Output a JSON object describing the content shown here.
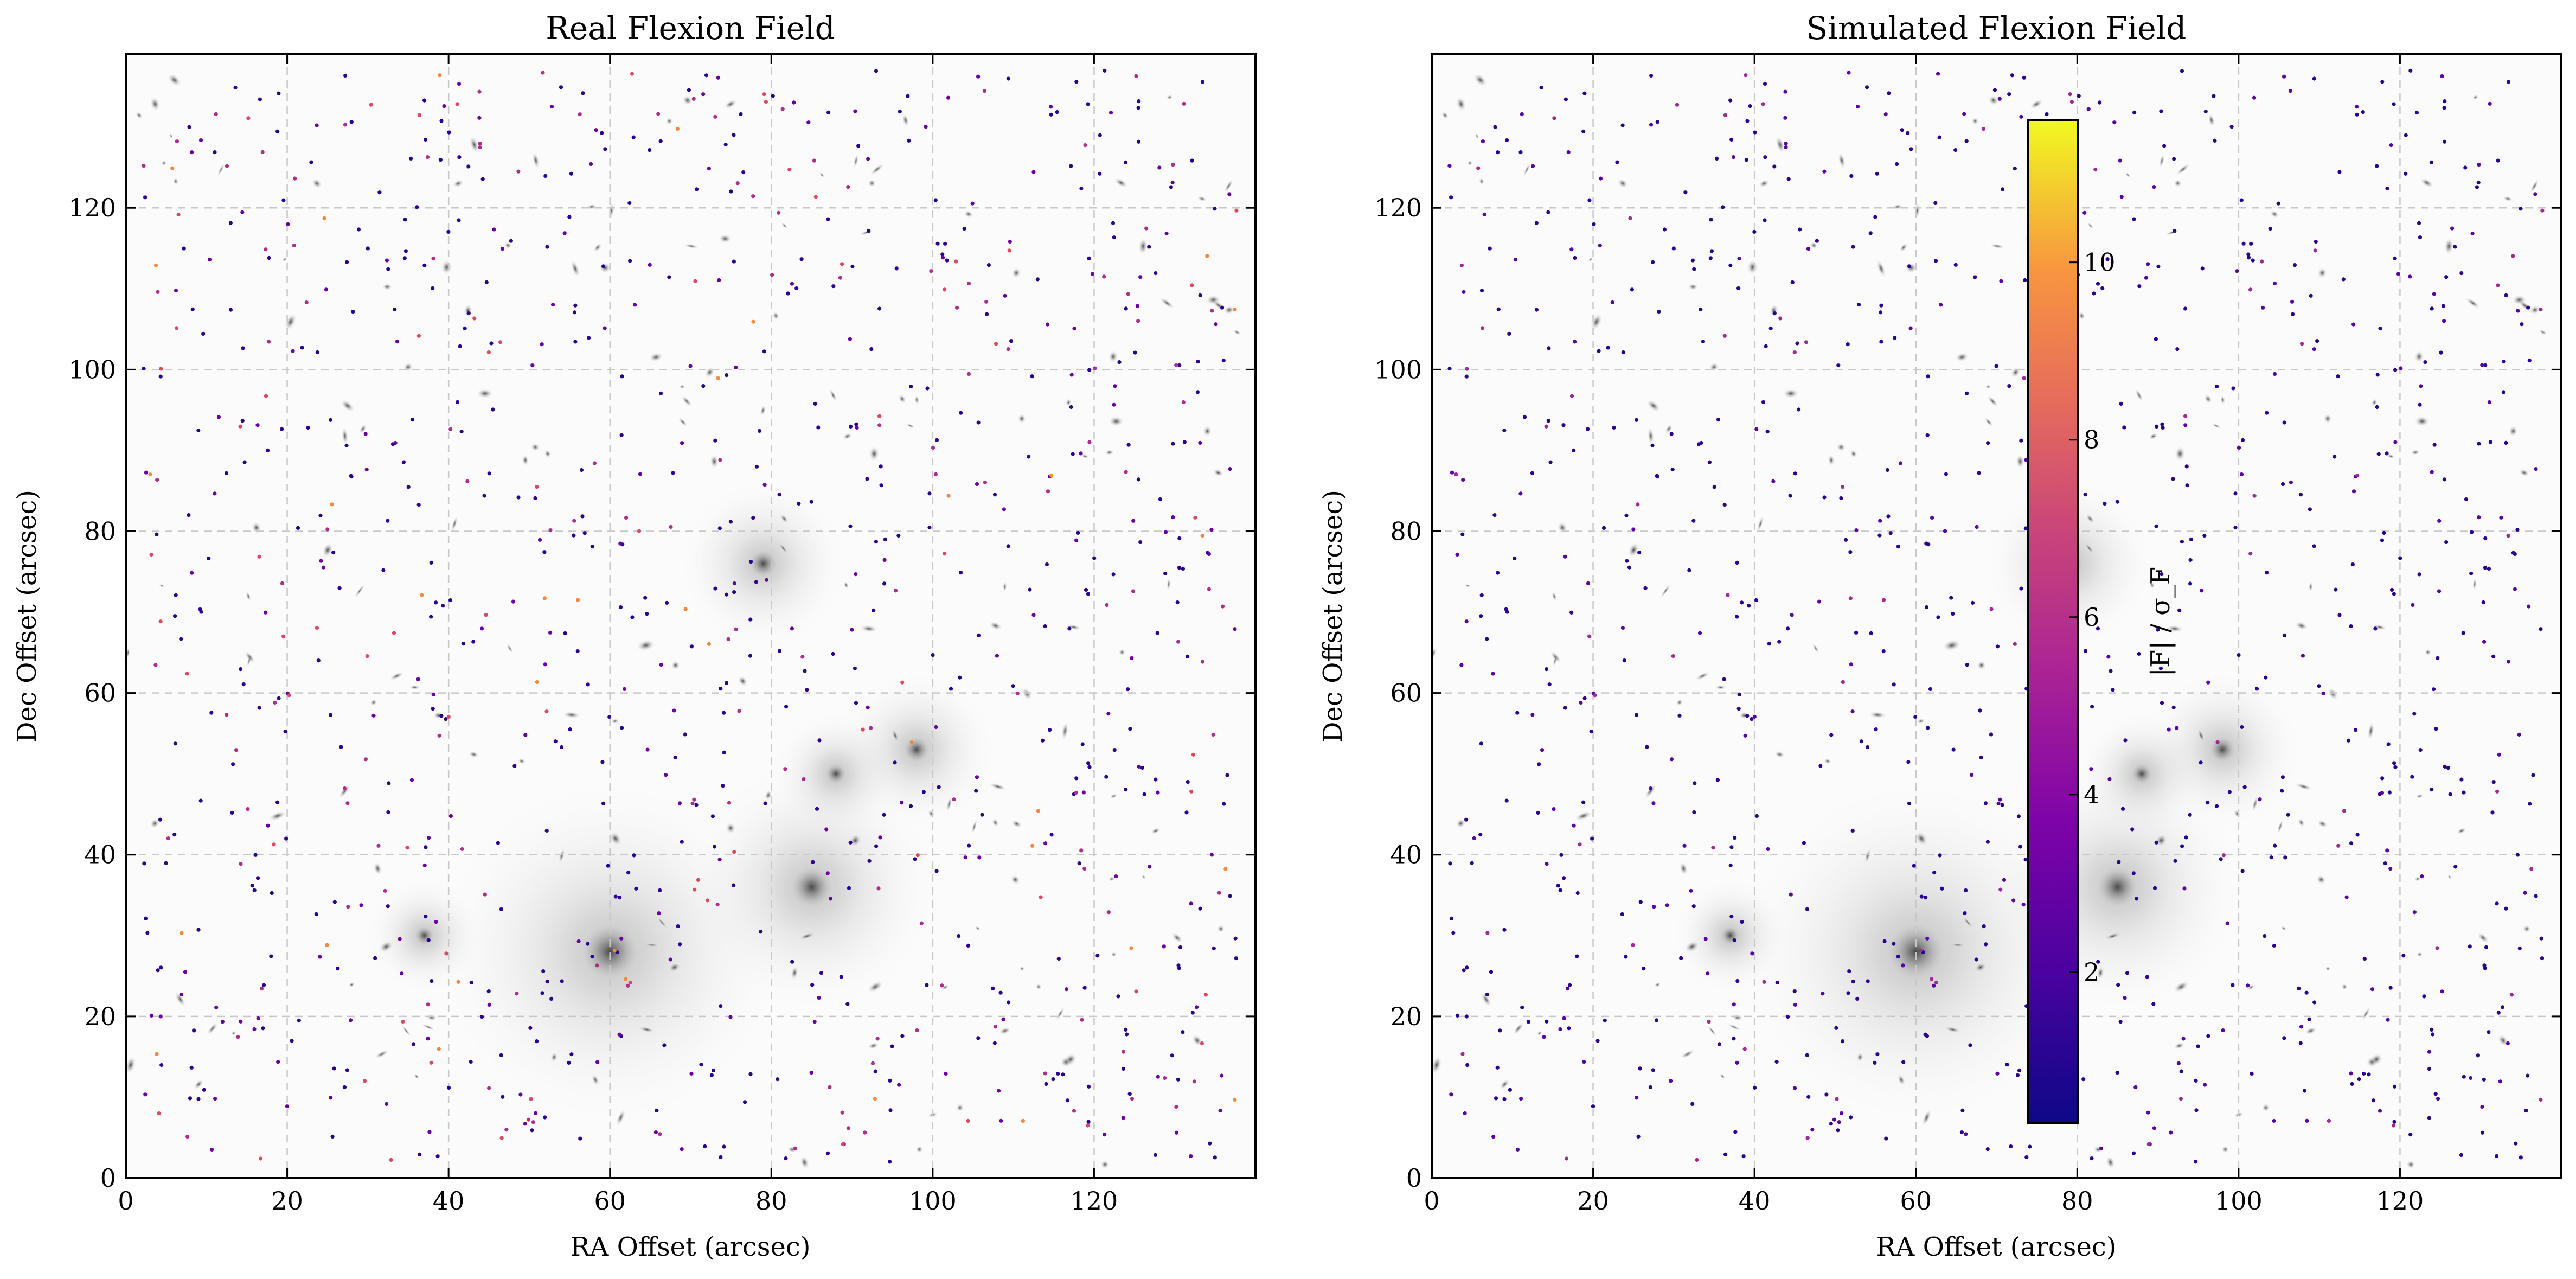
{
  "chart_data": [
    {
      "type": "scatter",
      "title": "Real Flexion Field",
      "xlabel": "RA Offset (arcsec)",
      "ylabel": "Dec Offset (arcsec)",
      "xlim": [
        0,
        140
      ],
      "ylim": [
        0,
        139
      ],
      "xticks": [
        "0",
        "20",
        "40",
        "60",
        "80",
        "100",
        "120"
      ],
      "yticks": [
        "0",
        "20",
        "40",
        "60",
        "80",
        "100",
        "120"
      ],
      "grid": true,
      "background": "grayscale galaxy cluster image",
      "series": [
        {
          "marker_color_scale": "plasma",
          "points": "~1000 flexion measurement points"
        }
      ]
    },
    {
      "type": "scatter",
      "title": "Simulated Flexion Field",
      "xlabel": "RA Offset (arcsec)",
      "ylabel": "Dec Offset (arcsec)",
      "xlim": [
        0,
        140
      ],
      "ylim": [
        0,
        139
      ],
      "xticks": [
        "0",
        "20",
        "40",
        "60",
        "80",
        "100",
        "120"
      ],
      "yticks": [
        "0",
        "20",
        "40",
        "60",
        "80",
        "100",
        "120"
      ],
      "grid": true,
      "background": "grayscale galaxy cluster image",
      "colorbar": {
        "label": "|F| / σ_F",
        "colormap": "plasma",
        "range": [
          0.3,
          11.6
        ],
        "ticks": [
          "2",
          "4",
          "6",
          "8",
          "10"
        ],
        "placement": "inset-center"
      }
    }
  ],
  "colors": {
    "low": "#2a0593",
    "mid": "#c23d80",
    "high": "#f0f921"
  }
}
